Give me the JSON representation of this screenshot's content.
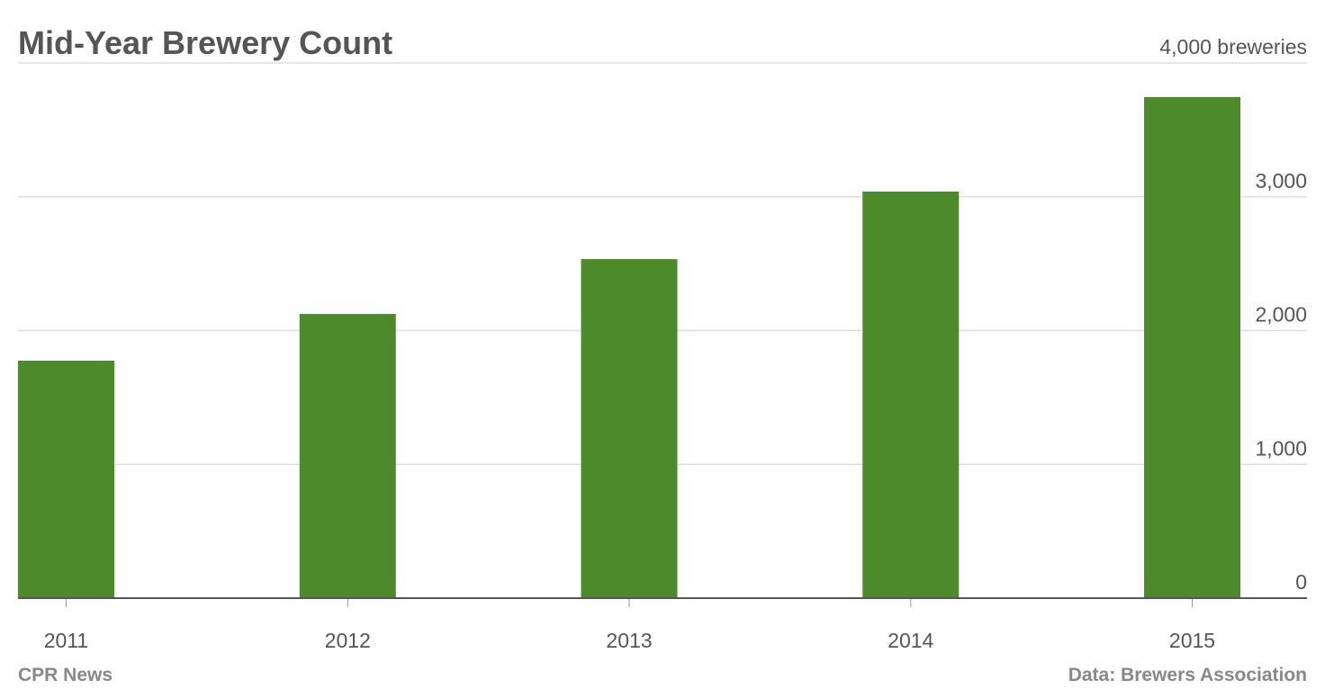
{
  "chart_data": {
    "type": "bar",
    "title": "Mid-Year Brewery Count",
    "categories": [
      "2011",
      "2012",
      "2013",
      "2014",
      "2015"
    ],
    "values": [
      1775,
      2124,
      2534,
      3039,
      3745
    ],
    "color": "#4d8a2b",
    "ylim": [
      0,
      4000
    ],
    "yticks": [
      0,
      {
        "value": 1000,
        "label": "1,000"
      },
      {
        "value": 2000,
        "label": "2,000"
      },
      {
        "value": 3000,
        "label": "3,000"
      },
      {
        "value": 4000,
        "label": "4,000 breweries"
      }
    ],
    "grid": true,
    "source": "Data: Brewers Association",
    "credit": "CPR News"
  }
}
